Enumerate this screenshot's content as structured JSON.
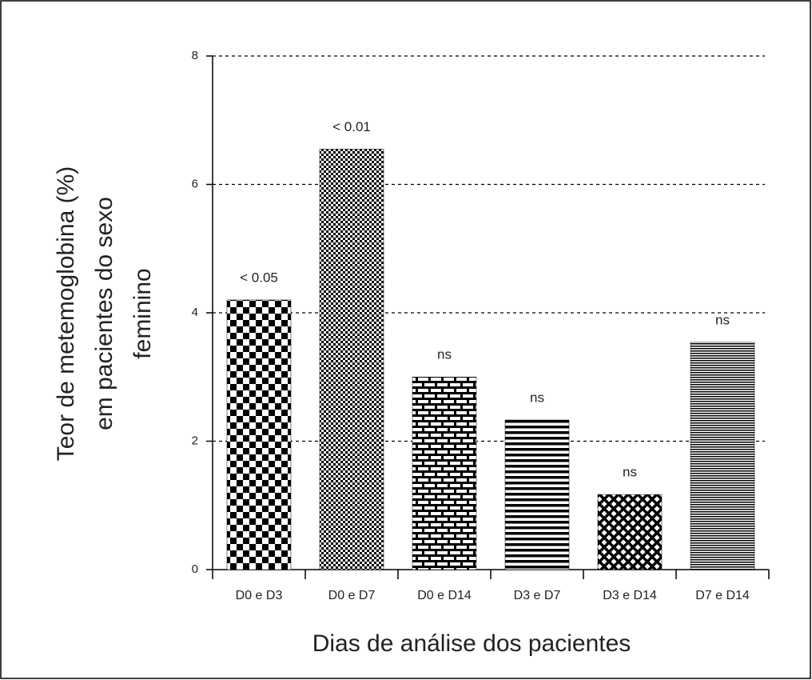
{
  "chart_data": {
    "type": "bar",
    "ylabel": [
      "Teor de metemoglobina (%)",
      "em pacientes do sexo",
      "feminino"
    ],
    "xlabel": "Dias de análise dos pacientes",
    "categories": [
      "D0 e D3",
      "D0 e D7",
      "D0 e D14",
      "D3 e D7",
      "D3 e D14",
      "D7 e D14"
    ],
    "values": [
      4.2,
      6.55,
      3.0,
      2.33,
      1.17,
      3.54
    ],
    "annotations": [
      "< 0.05",
      "< 0.01",
      "ns",
      "ns",
      "ns",
      "ns"
    ],
    "color": "#000000",
    "ylim": [
      0,
      8
    ],
    "yticks": [
      0,
      2,
      4,
      6,
      8
    ],
    "grid": true
  }
}
